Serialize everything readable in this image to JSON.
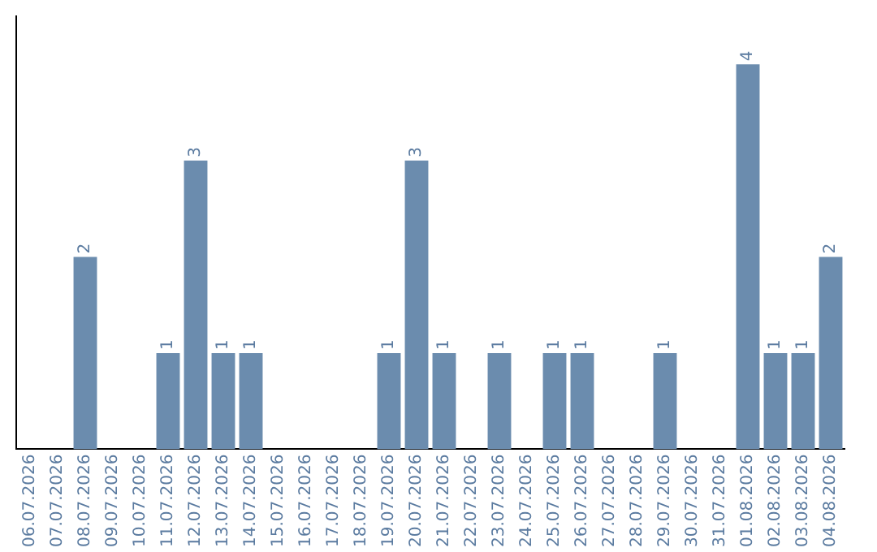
{
  "chart_data": {
    "type": "bar",
    "categories": [
      "06.07.2026",
      "07.07.2026",
      "08.07.2026",
      "09.07.2026",
      "10.07.2026",
      "11.07.2026",
      "12.07.2026",
      "13.07.2026",
      "14.07.2026",
      "15.07.2026",
      "16.07.2026",
      "17.07.2026",
      "18.07.2026",
      "19.07.2026",
      "20.07.2026",
      "21.07.2026",
      "22.07.2026",
      "23.07.2026",
      "24.07.2026",
      "25.07.2026",
      "26.07.2026",
      "27.07.2026",
      "28.07.2026",
      "29.07.2026",
      "30.07.2026",
      "31.07.2026",
      "01.08.2026",
      "02.08.2026",
      "03.08.2026",
      "04.08.2026"
    ],
    "values": [
      0,
      0,
      2,
      0,
      0,
      1,
      3,
      1,
      1,
      0,
      0,
      0,
      0,
      1,
      3,
      1,
      0,
      1,
      0,
      1,
      1,
      0,
      0,
      1,
      0,
      0,
      4,
      1,
      1,
      2
    ],
    "value_labels": [
      null,
      null,
      "2",
      null,
      null,
      "1",
      "3",
      "1",
      "1",
      null,
      null,
      null,
      null,
      "1",
      "3",
      "1",
      null,
      "1",
      null,
      "1",
      "1",
      null,
      null,
      "1",
      null,
      null,
      "4",
      "1",
      "1",
      "2"
    ],
    "color": "#6b8cae",
    "grid": false,
    "legend": false,
    "tick_labels": "x"
  }
}
